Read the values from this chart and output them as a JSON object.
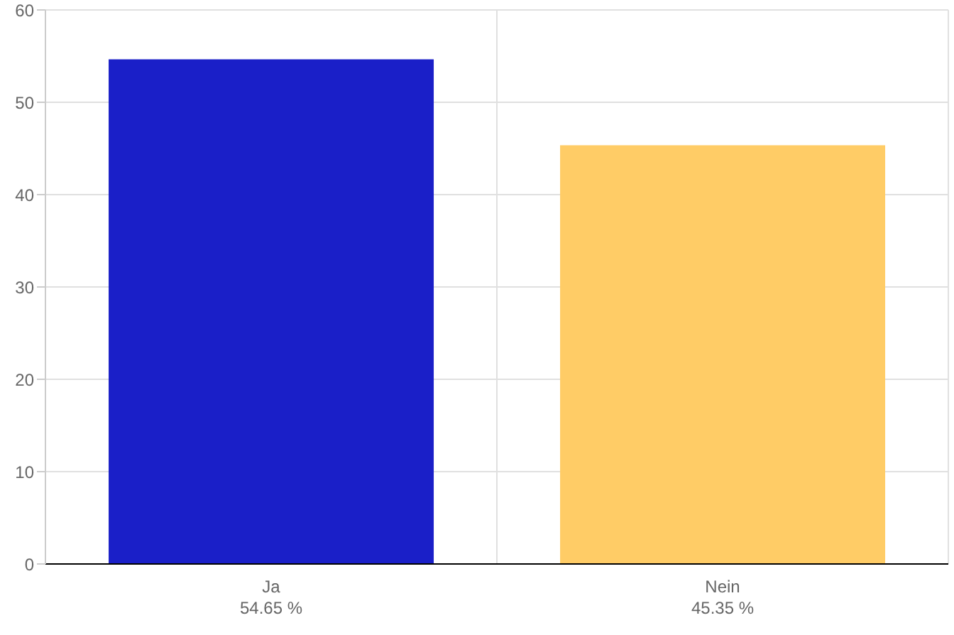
{
  "chart_data": {
    "type": "bar",
    "categories": [
      "Ja",
      "Nein"
    ],
    "values": [
      54.65,
      45.35
    ],
    "colors": [
      "#1a1fc8",
      "#ffcc66"
    ],
    "value_labels": [
      "54.65 %",
      "45.35 %"
    ],
    "ylim": [
      0,
      60
    ],
    "yticks": [
      0,
      10,
      20,
      30,
      40,
      50,
      60
    ],
    "grid": true
  }
}
